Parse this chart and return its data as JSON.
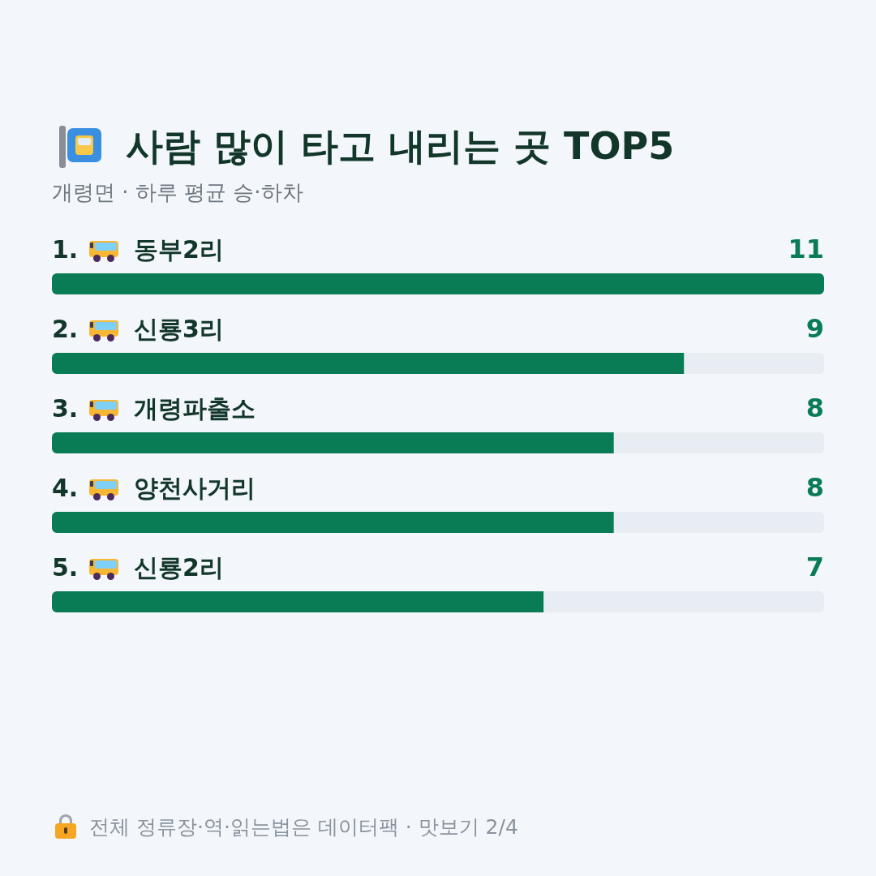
{
  "chart_data": {
    "type": "bar",
    "orientation": "horizontal",
    "title": "사람 많이 타고 내리는 곳 TOP5",
    "subtitle": "개령면 · 하루 평균 승·하차",
    "categories": [
      "1. 동부2리",
      "2. 신룡3리",
      "3. 개령파출소",
      "4. 양천사거리",
      "5. 신룡2리"
    ],
    "values": [
      11,
      9,
      8,
      8,
      7
    ],
    "color": "#0a7c55",
    "data_labels": true,
    "annotations": [
      "전체 정류장·역·읽는법은 데이터팩 · 맛보기 2/4"
    ]
  }
}
